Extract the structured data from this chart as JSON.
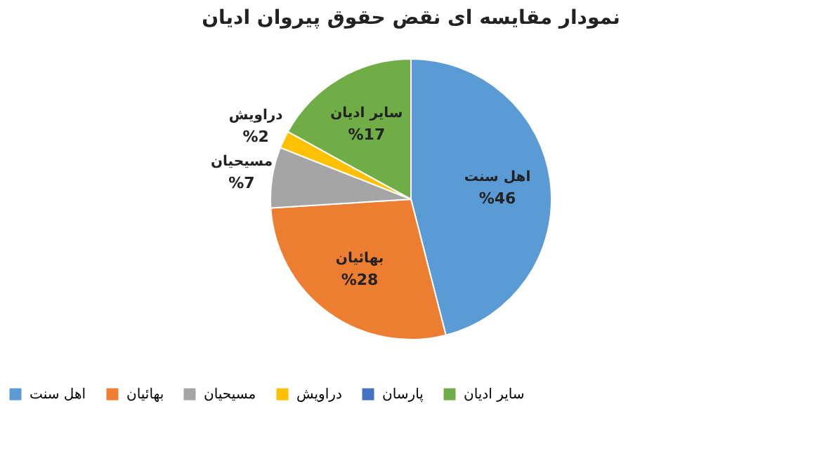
{
  "chart_data": {
    "type": "pie",
    "title": "نمودار مقایسه ای نقض حقوق پیروان ادیان",
    "categories": [
      "اهل سنت",
      "بهائیان",
      "مسیحیان",
      "دراویش",
      "پارسان",
      "سایر ادیان"
    ],
    "values": [
      46,
      28,
      7,
      2,
      0,
      17
    ],
    "colors": [
      "#5b9bd5",
      "#ed7d31",
      "#a5a5a5",
      "#ffc000",
      "#4472c4",
      "#70ad47"
    ],
    "value_labels": [
      "%46",
      "%28",
      "%7",
      "%2",
      null,
      "%17"
    ],
    "legend": "bottom"
  }
}
